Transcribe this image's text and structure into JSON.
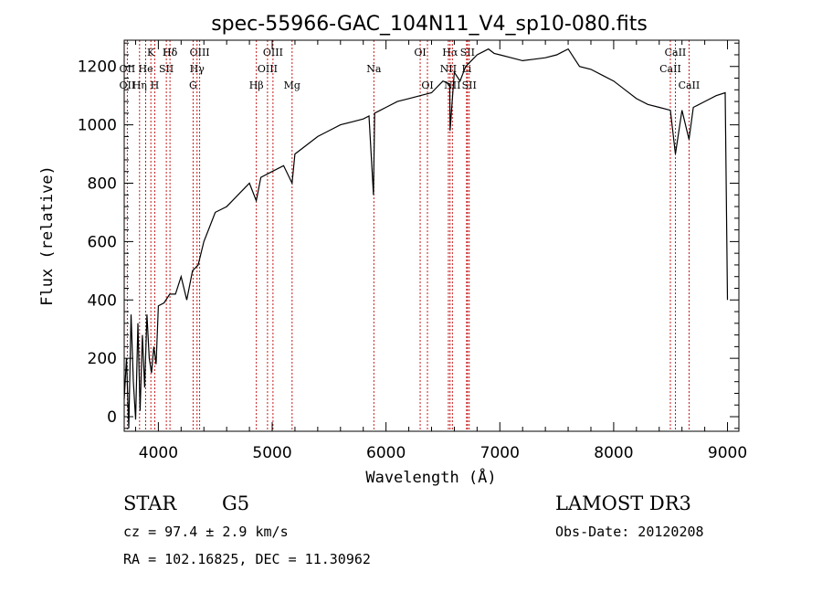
{
  "chart_data": {
    "type": "line",
    "title": "spec-55966-GAC_104N11_V4_sp10-080.fits",
    "xlabel": "Wavelength (Å)",
    "ylabel": "Flux (relative)",
    "xlim": [
      3700,
      9100
    ],
    "ylim": [
      -50,
      1290
    ],
    "xticks": [
      4000,
      5000,
      6000,
      7000,
      8000,
      9000
    ],
    "yticks": [
      0,
      200,
      400,
      600,
      800,
      1000,
      1200
    ],
    "series": [
      {
        "name": "flux",
        "x": [
          3700,
          3720,
          3740,
          3760,
          3780,
          3800,
          3820,
          3840,
          3860,
          3880,
          3900,
          3920,
          3940,
          3960,
          3980,
          4000,
          4050,
          4100,
          4150,
          4200,
          4250,
          4300,
          4350,
          4400,
          4450,
          4500,
          4600,
          4700,
          4800,
          4860,
          4900,
          5000,
          5100,
          5175,
          5200,
          5300,
          5400,
          5500,
          5600,
          5700,
          5800,
          5850,
          5890,
          5900,
          5950,
          6000,
          6100,
          6200,
          6300,
          6400,
          6500,
          6560,
          6563,
          6600,
          6650,
          6700,
          6750,
          6800,
          6850,
          6900,
          6950,
          7000,
          7100,
          7200,
          7300,
          7400,
          7500,
          7550,
          7600,
          7650,
          7700,
          7800,
          7900,
          8000,
          8100,
          8200,
          8300,
          8400,
          8498,
          8542,
          8600,
          8662,
          8700,
          8800,
          8900,
          8980,
          9000
        ],
        "values": [
          60,
          200,
          -40,
          350,
          120,
          -10,
          320,
          20,
          280,
          100,
          350,
          200,
          150,
          240,
          180,
          380,
          390,
          420,
          420,
          480,
          400,
          500,
          520,
          600,
          650,
          700,
          720,
          760,
          800,
          740,
          820,
          840,
          860,
          800,
          900,
          930,
          960,
          980,
          1000,
          1010,
          1020,
          1030,
          760,
          1040,
          1050,
          1060,
          1080,
          1090,
          1100,
          1110,
          1150,
          1140,
          980,
          1180,
          1150,
          1200,
          1220,
          1240,
          1250,
          1260,
          1245,
          1240,
          1230,
          1220,
          1225,
          1230,
          1240,
          1250,
          1260,
          1230,
          1200,
          1190,
          1170,
          1150,
          1120,
          1090,
          1070,
          1060,
          1050,
          900,
          1050,
          950,
          1060,
          1080,
          1100,
          1110,
          400
        ]
      }
    ],
    "line_markers": [
      {
        "label": "Hδ",
        "x": 4102,
        "row": 0
      },
      {
        "label": "K",
        "x": 3934,
        "row": 0
      },
      {
        "label": "OII",
        "x": 3727,
        "row": 1
      },
      {
        "label": "He",
        "x": 3889,
        "row": 1
      },
      {
        "label": "SII",
        "x": 4070,
        "row": 1
      },
      {
        "label": "OII",
        "x": 3727,
        "row": 2
      },
      {
        "label": "Hη",
        "x": 3835,
        "row": 2
      },
      {
        "label": "H",
        "x": 3968,
        "row": 2
      },
      {
        "label": "Hδ",
        "x": 4102,
        "row": 0
      },
      {
        "label": "OIII",
        "x": 4363,
        "row": 0
      },
      {
        "label": "Hγ",
        "x": 4340,
        "row": 1
      },
      {
        "label": "G",
        "x": 4305,
        "row": 2
      },
      {
        "label": "OIII",
        "x": 5007,
        "row": 0
      },
      {
        "label": "OIII",
        "x": 4959,
        "row": 1
      },
      {
        "label": "Hβ",
        "x": 4861,
        "row": 2
      },
      {
        "label": "Mg",
        "x": 5175,
        "row": 2
      },
      {
        "label": "Na",
        "x": 5893,
        "row": 1
      },
      {
        "label": "OI",
        "x": 6300,
        "row": 0
      },
      {
        "label": "OI",
        "x": 6364,
        "row": 2
      },
      {
        "label": "Hα",
        "x": 6563,
        "row": 0
      },
      {
        "label": "SII",
        "x": 6716,
        "row": 0
      },
      {
        "label": "NII",
        "x": 6548,
        "row": 1
      },
      {
        "label": "Li",
        "x": 6708,
        "row": 1
      },
      {
        "label": "NII",
        "x": 6583,
        "row": 2
      },
      {
        "label": "SII",
        "x": 6731,
        "row": 2
      },
      {
        "label": "CaII",
        "x": 8542,
        "row": 0
      },
      {
        "label": "CaII",
        "x": 8498,
        "row": 1
      },
      {
        "label": "CaII",
        "x": 8662,
        "row": 2
      }
    ]
  },
  "info": {
    "object_class": "STAR",
    "subclass": "G5",
    "survey": "LAMOST DR3",
    "redshift": "cz = 97.4 ± 2.9 km/s",
    "obs_date": "Obs-Date: 20120208",
    "coords": "RA = 102.16825, DEC =  11.30962"
  }
}
